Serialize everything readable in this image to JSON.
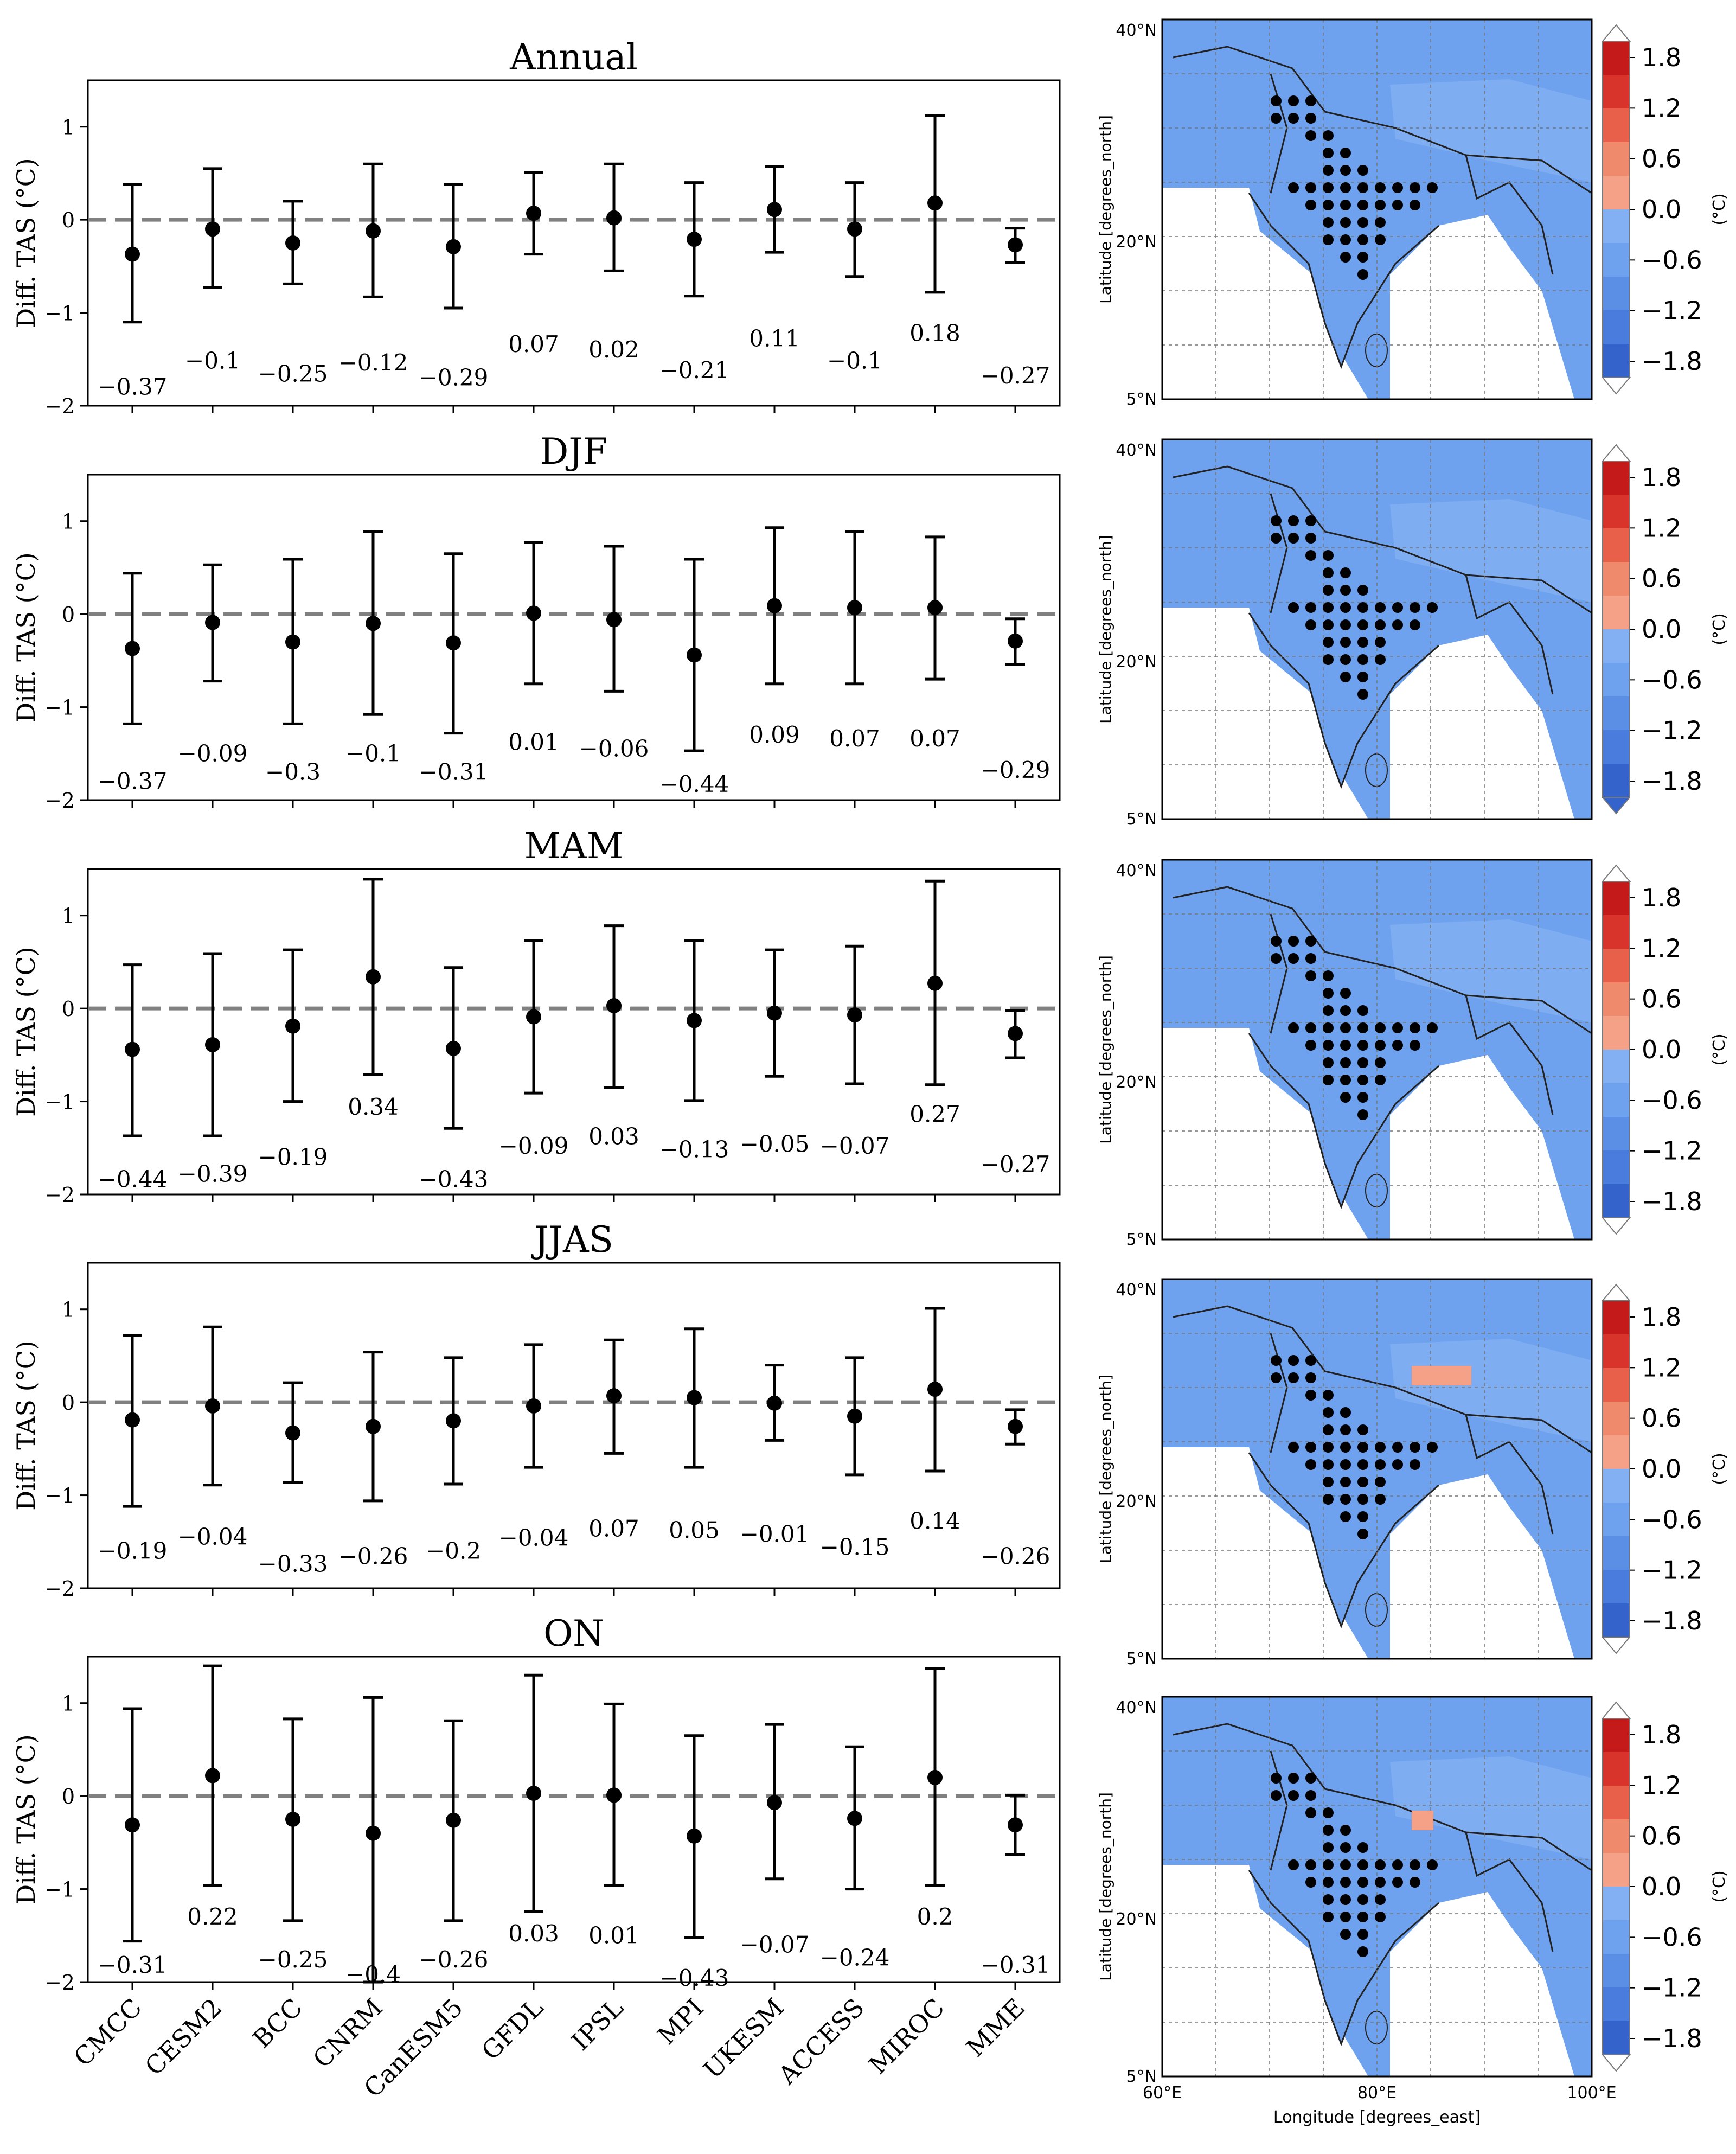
{
  "figure": {
    "ylabel": "Diff. TAS (°C)",
    "map_ylabel": "Latitude [degrees_north]",
    "map_xlabel": "Longitude [degrees_east]",
    "cbar_label": "(°C)"
  },
  "colors": {
    "ocean_land_blue": "#6fa2ee",
    "pale_blue": "#82b0f2",
    "salmon": "#f5a187",
    "dashed_line": "#808080",
    "marker": "#000000"
  },
  "chart_data": [
    {
      "type": "errorbar",
      "title": "Annual",
      "categories": [
        "CMCC",
        "CESM2",
        "BCC",
        "CNRM",
        "CanESM5",
        "GFDL",
        "IPSL",
        "MPI",
        "UKESM",
        "ACCESS",
        "MIROC",
        "MME"
      ],
      "values": [
        -0.37,
        -0.1,
        -0.25,
        -0.12,
        -0.29,
        0.07,
        0.02,
        -0.21,
        0.11,
        -0.1,
        0.18,
        -0.27
      ],
      "value_labels": [
        "−0.37",
        "−0.1",
        "−0.25",
        "−0.12",
        "−0.29",
        "0.07",
        "0.02",
        "−0.21",
        "0.11",
        "−0.1",
        "0.18",
        "−0.27"
      ],
      "lower": [
        -1.1,
        -0.73,
        -0.69,
        -0.83,
        -0.95,
        -0.37,
        -0.55,
        -0.82,
        -0.35,
        -0.61,
        -0.78,
        -0.46
      ],
      "upper": [
        0.38,
        0.55,
        0.2,
        0.6,
        0.38,
        0.51,
        0.6,
        0.4,
        0.57,
        0.4,
        1.12,
        -0.09
      ],
      "label_y": [
        -1.8,
        -1.52,
        -1.66,
        -1.54,
        -1.7,
        -1.34,
        -1.4,
        -1.62,
        -1.28,
        -1.52,
        -1.22,
        -1.68
      ],
      "ylim": [
        -2,
        1.5
      ],
      "yticks": [
        -2,
        -1,
        0,
        1
      ],
      "ytick_labels": [
        "−2",
        "−1",
        "0",
        "1"
      ],
      "zero_line": "dashed",
      "map": {
        "colorbar_ticks": [
          "1.8",
          "1.2",
          "0.6",
          "0.0",
          "−0.6",
          "−1.2",
          "−1.8"
        ],
        "lat_ticks": [
          "40°N",
          "20°N",
          "5°N"
        ],
        "lon_ticks": []
      }
    },
    {
      "type": "errorbar",
      "title": "DJF",
      "categories": [
        "CMCC",
        "CESM2",
        "BCC",
        "CNRM",
        "CanESM5",
        "GFDL",
        "IPSL",
        "MPI",
        "UKESM",
        "ACCESS",
        "MIROC",
        "MME"
      ],
      "values": [
        -0.37,
        -0.09,
        -0.3,
        -0.1,
        -0.31,
        0.01,
        -0.06,
        -0.44,
        0.09,
        0.07,
        0.07,
        -0.29
      ],
      "value_labels": [
        "−0.37",
        "−0.09",
        "−0.3",
        "−0.1",
        "−0.31",
        "0.01",
        "−0.06",
        "−0.44",
        "0.09",
        "0.07",
        "0.07",
        "−0.29"
      ],
      "lower": [
        -1.18,
        -0.72,
        -1.18,
        -1.08,
        -1.28,
        -0.75,
        -0.83,
        -1.47,
        -0.75,
        -0.75,
        -0.7,
        -0.54
      ],
      "upper": [
        0.44,
        0.53,
        0.59,
        0.89,
        0.65,
        0.77,
        0.73,
        0.59,
        0.93,
        0.89,
        0.83,
        -0.05
      ],
      "label_y": [
        -1.8,
        -1.5,
        -1.7,
        -1.5,
        -1.7,
        -1.38,
        -1.45,
        -1.83,
        -1.3,
        -1.34,
        -1.34,
        -1.68
      ],
      "ylim": [
        -2,
        1.5
      ],
      "yticks": [
        -2,
        -1,
        0,
        1
      ],
      "ytick_labels": [
        "−2",
        "−1",
        "0",
        "1"
      ],
      "zero_line": "dashed",
      "map": {
        "colorbar_ticks": [
          "1.8",
          "1.2",
          "0.6",
          "0.0",
          "−0.6",
          "−1.2",
          "−1.8"
        ],
        "lat_ticks": [
          "40°N",
          "20°N",
          "5°N"
        ],
        "lon_ticks": []
      }
    },
    {
      "type": "errorbar",
      "title": "MAM",
      "categories": [
        "CMCC",
        "CESM2",
        "BCC",
        "CNRM",
        "CanESM5",
        "GFDL",
        "IPSL",
        "MPI",
        "UKESM",
        "ACCESS",
        "MIROC",
        "MME"
      ],
      "values": [
        -0.44,
        -0.39,
        -0.19,
        0.34,
        -0.43,
        -0.09,
        0.03,
        -0.13,
        -0.05,
        -0.07,
        0.27,
        -0.27
      ],
      "value_labels": [
        "−0.44",
        "−0.39",
        "−0.19",
        "0.34",
        "−0.43",
        "−0.09",
        "0.03",
        "−0.13",
        "−0.05",
        "−0.07",
        "0.27",
        "−0.27"
      ],
      "lower": [
        -1.37,
        -1.37,
        -1.0,
        -0.71,
        -1.29,
        -0.91,
        -0.85,
        -0.99,
        -0.73,
        -0.81,
        -0.82,
        -0.53
      ],
      "upper": [
        0.47,
        0.59,
        0.63,
        1.39,
        0.44,
        0.73,
        0.89,
        0.73,
        0.63,
        0.67,
        1.37,
        -0.02
      ],
      "label_y": [
        -1.84,
        -1.78,
        -1.6,
        -1.06,
        -1.84,
        -1.48,
        -1.38,
        -1.52,
        -1.46,
        -1.48,
        -1.14,
        -1.68
      ],
      "ylim": [
        -2,
        1.5
      ],
      "yticks": [
        -2,
        -1,
        0,
        1
      ],
      "ytick_labels": [
        "−2",
        "−1",
        "0",
        "1"
      ],
      "zero_line": "dashed",
      "map": {
        "colorbar_ticks": [
          "1.8",
          "1.2",
          "0.6",
          "0.0",
          "−0.6",
          "−1.2",
          "−1.8"
        ],
        "lat_ticks": [
          "40°N",
          "20°N",
          "5°N"
        ],
        "lon_ticks": []
      }
    },
    {
      "type": "errorbar",
      "title": "JJAS",
      "categories": [
        "CMCC",
        "CESM2",
        "BCC",
        "CNRM",
        "CanESM5",
        "GFDL",
        "IPSL",
        "MPI",
        "UKESM",
        "ACCESS",
        "MIROC",
        "MME"
      ],
      "values": [
        -0.19,
        -0.04,
        -0.33,
        -0.26,
        -0.2,
        -0.04,
        0.07,
        0.05,
        -0.01,
        -0.15,
        0.14,
        -0.26
      ],
      "value_labels": [
        "−0.19",
        "−0.04",
        "−0.33",
        "−0.26",
        "−0.2",
        "−0.04",
        "0.07",
        "0.05",
        "−0.01",
        "−0.15",
        "0.14",
        "−0.26"
      ],
      "lower": [
        -1.12,
        -0.89,
        -0.86,
        -1.06,
        -0.88,
        -0.7,
        -0.55,
        -0.7,
        -0.41,
        -0.78,
        -0.74,
        -0.45
      ],
      "upper": [
        0.72,
        0.81,
        0.21,
        0.54,
        0.48,
        0.62,
        0.67,
        0.79,
        0.4,
        0.48,
        1.01,
        -0.08
      ],
      "label_y": [
        -1.6,
        -1.45,
        -1.74,
        -1.66,
        -1.6,
        -1.46,
        -1.36,
        -1.38,
        -1.42,
        -1.56,
        -1.28,
        -1.66
      ],
      "ylim": [
        -2,
        1.5
      ],
      "yticks": [
        -2,
        -1,
        0,
        1
      ],
      "ytick_labels": [
        "−2",
        "−1",
        "0",
        "1"
      ],
      "zero_line": "dashed",
      "map": {
        "colorbar_ticks": [
          "1.8",
          "1.2",
          "0.6",
          "0.0",
          "−0.6",
          "−1.2",
          "−1.8"
        ],
        "lat_ticks": [
          "40°N",
          "20°N",
          "5°N"
        ],
        "lon_ticks": []
      }
    },
    {
      "type": "errorbar",
      "title": "ON",
      "categories": [
        "CMCC",
        "CESM2",
        "BCC",
        "CNRM",
        "CanESM5",
        "GFDL",
        "IPSL",
        "MPI",
        "UKESM",
        "ACCESS",
        "MIROC",
        "MME"
      ],
      "values": [
        -0.31,
        0.22,
        -0.25,
        -0.4,
        -0.26,
        0.03,
        0.01,
        -0.43,
        -0.07,
        -0.24,
        0.2,
        -0.31
      ],
      "value_labels": [
        "−0.31",
        "0.22",
        "−0.25",
        "−0.4",
        "−0.26",
        "0.03",
        "0.01",
        "−0.43",
        "−0.07",
        "−0.24",
        "0.2",
        "−0.31"
      ],
      "lower": [
        -1.56,
        -0.96,
        -1.34,
        -2.0,
        -1.34,
        -1.24,
        -0.96,
        -1.52,
        -0.89,
        -1.0,
        -0.96,
        -0.63
      ],
      "upper": [
        0.94,
        1.4,
        0.83,
        1.06,
        0.81,
        1.3,
        0.99,
        0.65,
        0.77,
        0.53,
        1.37,
        0.01
      ],
      "label_y": [
        -1.82,
        -1.3,
        -1.76,
        -1.92,
        -1.76,
        -1.48,
        -1.5,
        -1.96,
        -1.6,
        -1.74,
        -1.3,
        -1.82
      ],
      "ylim": [
        -2,
        1.5
      ],
      "yticks": [
        -2,
        -1,
        0,
        1
      ],
      "ytick_labels": [
        "−2",
        "−1",
        "0",
        "1"
      ],
      "zero_line": "dashed",
      "map": {
        "colorbar_ticks": [
          "1.8",
          "1.2",
          "0.6",
          "0.0",
          "−0.6",
          "−1.2",
          "−1.8"
        ],
        "lat_ticks": [
          "40°N",
          "20°N",
          "5°N"
        ],
        "lon_ticks": [
          "60°E",
          "80°E",
          "100°E"
        ]
      }
    }
  ]
}
